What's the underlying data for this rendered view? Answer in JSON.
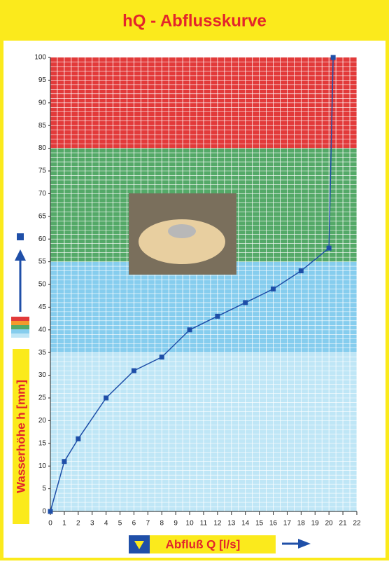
{
  "chart_data": {
    "type": "line",
    "title": "hQ - Abflusskurve",
    "x_label": "Abfluß Q [l/s]",
    "y_label": "Wasserhöhe h [mm]",
    "series": [
      {
        "color": "#1f4fa8",
        "x": [
          0,
          1,
          2,
          4,
          6,
          8,
          10,
          12,
          14,
          16,
          18,
          20,
          20.3
        ],
        "values": [
          0,
          11,
          16,
          25,
          31,
          34,
          40,
          43,
          46,
          49,
          53,
          58,
          100
        ]
      }
    ],
    "xlim": [
      0,
      22
    ],
    "xticks": [
      0,
      1,
      2,
      3,
      4,
      5,
      6,
      7,
      8,
      9,
      10,
      11,
      12,
      13,
      14,
      15,
      16,
      17,
      18,
      19,
      20,
      21,
      22
    ],
    "ylim": [
      0,
      100
    ],
    "yticks": [
      0,
      5,
      10,
      15,
      20,
      25,
      30,
      35,
      40,
      45,
      50,
      55,
      60,
      65,
      70,
      75,
      80,
      85,
      90,
      95,
      100
    ],
    "bands": [
      {
        "from": 0,
        "to": 35,
        "color": "#bfe6f6"
      },
      {
        "from": 35,
        "to": 55,
        "color": "#86cdee"
      },
      {
        "from": 55,
        "to": 80,
        "color": "#54a968"
      },
      {
        "from": 80,
        "to": 100,
        "color": "#e23a3a"
      }
    ],
    "grid": true
  }
}
